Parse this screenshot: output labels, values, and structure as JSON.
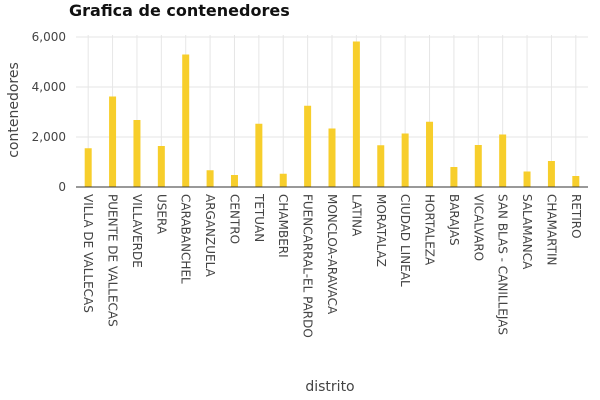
{
  "chart_data": {
    "type": "bar",
    "title": "Grafica de contenedores",
    "xlabel": "distrito",
    "ylabel": "contenedores",
    "ylim": [
      0,
      6000
    ],
    "yticks": [
      0,
      2000,
      4000,
      6000
    ],
    "ytick_labels": [
      "0",
      "2,000",
      "4,000",
      "6,000"
    ],
    "grid": true,
    "bar_color": "#f7ce2b",
    "categories": [
      "VILLA DE VALLECAS",
      "PUENTE DE VALLECAS",
      "VILLAVERDE",
      "USERA",
      "CARABANCHEL",
      "ARGANZUELA",
      "CENTRO",
      "TETUAN",
      "CHAMBERI",
      "FUENCARRAL-EL PARDO",
      "MONCLOA-ARAVACA",
      "LATINA",
      "MORATALAZ",
      "CIUDAD LINEAL",
      "HORTALEZA",
      "BARAJAS",
      "VICALVARO",
      "SAN BLAS - CANILLEJAS",
      "SALAMANCA",
      "CHAMARTIN",
      "RETIRO"
    ],
    "values": [
      1550,
      3620,
      2680,
      1640,
      5300,
      670,
      480,
      2530,
      530,
      3250,
      2340,
      5820,
      1670,
      2140,
      2610,
      800,
      1680,
      2100,
      620,
      1040,
      440
    ]
  }
}
